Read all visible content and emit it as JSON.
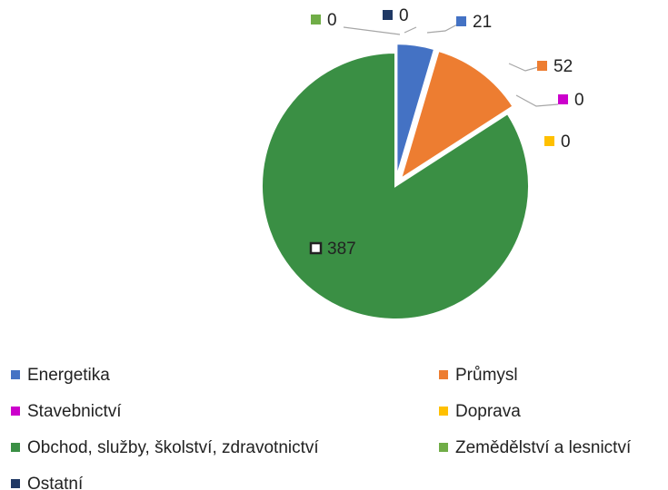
{
  "chart_data": {
    "type": "pie",
    "categories": [
      "Energetika",
      "Průmysl",
      "Stavebnictví",
      "Doprava",
      "Obchod, služby, školství, zdravotnictví",
      "Zemědělství a lesnictví",
      "Ostatní"
    ],
    "values": [
      21,
      52,
      0,
      0,
      387,
      0,
      0
    ],
    "colors": [
      "#4472c4",
      "#ed7d31",
      "#cc00cc",
      "#ffc000",
      "#3a8f44",
      "#70ad47",
      "#1f3864"
    ],
    "legend": "bottom"
  }
}
